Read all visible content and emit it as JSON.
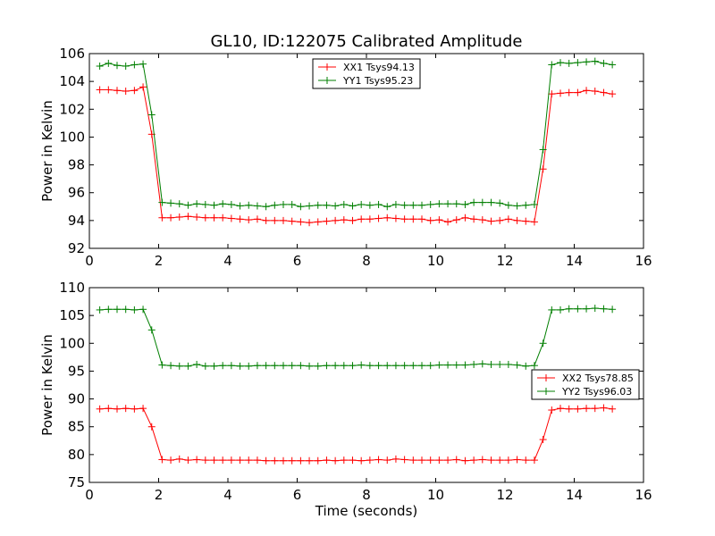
{
  "chart_data": [
    {
      "type": "line",
      "title": "GL10, ID:122075 Calibrated Amplitude",
      "xlabel": "",
      "ylabel": "Power in Kelvin",
      "xlim": [
        0,
        16
      ],
      "ylim": [
        92,
        106
      ],
      "xticks": [
        "0",
        "2",
        "4",
        "6",
        "8",
        "10",
        "12",
        "14",
        "16"
      ],
      "yticks": [
        "92",
        "94",
        "96",
        "98",
        "100",
        "102",
        "104",
        "106"
      ],
      "grid": false,
      "legend_position": "top-center",
      "x": [
        0.3,
        0.55,
        0.8,
        1.05,
        1.3,
        1.55,
        1.8,
        2.1,
        2.35,
        2.6,
        2.85,
        3.1,
        3.35,
        3.6,
        3.85,
        4.1,
        4.35,
        4.6,
        4.85,
        5.1,
        5.35,
        5.6,
        5.85,
        6.1,
        6.35,
        6.6,
        6.85,
        7.1,
        7.35,
        7.6,
        7.85,
        8.1,
        8.35,
        8.6,
        8.85,
        9.1,
        9.35,
        9.6,
        9.85,
        10.1,
        10.35,
        10.6,
        10.85,
        11.1,
        11.35,
        11.6,
        11.85,
        12.1,
        12.35,
        12.6,
        12.85,
        13.1,
        13.35,
        13.6,
        13.85,
        14.1,
        14.35,
        14.6,
        14.85,
        15.1
      ],
      "series": [
        {
          "name": "XX1 Tsys94.13",
          "color": "#ff0000",
          "values": [
            103.4,
            103.4,
            103.35,
            103.3,
            103.35,
            103.6,
            100.2,
            94.2,
            94.2,
            94.25,
            94.3,
            94.25,
            94.2,
            94.2,
            94.2,
            94.15,
            94.1,
            94.05,
            94.1,
            94.0,
            94.0,
            94.0,
            93.95,
            93.9,
            93.85,
            93.9,
            93.95,
            94.0,
            94.05,
            94.0,
            94.1,
            94.1,
            94.15,
            94.2,
            94.15,
            94.1,
            94.1,
            94.1,
            94.0,
            94.05,
            93.9,
            94.05,
            94.2,
            94.1,
            94.05,
            93.95,
            94.0,
            94.1,
            94.0,
            93.95,
            93.9,
            97.7,
            103.1,
            103.15,
            103.2,
            103.2,
            103.35,
            103.3,
            103.2,
            103.1
          ]
        },
        {
          "name": "YY1 Tsys95.23",
          "color": "#007f00",
          "values": [
            105.1,
            105.3,
            105.15,
            105.1,
            105.2,
            105.25,
            101.6,
            95.3,
            95.25,
            95.2,
            95.1,
            95.2,
            95.15,
            95.1,
            95.2,
            95.15,
            95.05,
            95.1,
            95.05,
            95.0,
            95.1,
            95.15,
            95.15,
            95.0,
            95.05,
            95.1,
            95.1,
            95.05,
            95.15,
            95.05,
            95.15,
            95.1,
            95.15,
            95.0,
            95.15,
            95.1,
            95.1,
            95.1,
            95.15,
            95.2,
            95.2,
            95.2,
            95.15,
            95.3,
            95.3,
            95.3,
            95.25,
            95.1,
            95.05,
            95.1,
            95.15,
            99.1,
            105.2,
            105.35,
            105.3,
            105.35,
            105.4,
            105.45,
            105.3,
            105.2
          ]
        }
      ]
    },
    {
      "type": "line",
      "title": "",
      "xlabel": "Time (seconds)",
      "ylabel": "Power in Kelvin",
      "xlim": [
        0,
        16
      ],
      "ylim": [
        75,
        110
      ],
      "xticks": [
        "0",
        "2",
        "4",
        "6",
        "8",
        "10",
        "12",
        "14",
        "16"
      ],
      "yticks": [
        "75",
        "80",
        "85",
        "90",
        "95",
        "100",
        "105",
        "110"
      ],
      "grid": false,
      "legend_position": "right",
      "x": [
        0.3,
        0.55,
        0.8,
        1.05,
        1.3,
        1.55,
        1.8,
        2.1,
        2.35,
        2.6,
        2.85,
        3.1,
        3.35,
        3.6,
        3.85,
        4.1,
        4.35,
        4.6,
        4.85,
        5.1,
        5.35,
        5.6,
        5.85,
        6.1,
        6.35,
        6.6,
        6.85,
        7.1,
        7.35,
        7.6,
        7.85,
        8.1,
        8.35,
        8.6,
        8.85,
        9.1,
        9.35,
        9.6,
        9.85,
        10.1,
        10.35,
        10.6,
        10.85,
        11.1,
        11.35,
        11.6,
        11.85,
        12.1,
        12.35,
        12.6,
        12.85,
        13.1,
        13.35,
        13.6,
        13.85,
        14.1,
        14.35,
        14.6,
        14.85,
        15.1
      ],
      "series": [
        {
          "name": "XX2 Tsys78.85",
          "color": "#ff0000",
          "values": [
            88.2,
            88.3,
            88.2,
            88.3,
            88.2,
            88.3,
            85.0,
            79.1,
            79.0,
            79.2,
            79.0,
            79.1,
            79.0,
            79.0,
            79.0,
            79.0,
            79.0,
            79.0,
            79.0,
            78.9,
            78.9,
            78.9,
            78.9,
            78.9,
            78.9,
            78.9,
            79.0,
            78.9,
            79.0,
            79.0,
            78.9,
            79.0,
            79.1,
            79.0,
            79.2,
            79.1,
            79.0,
            79.0,
            79.0,
            79.0,
            79.0,
            79.1,
            78.9,
            79.0,
            79.1,
            79.0,
            79.0,
            79.0,
            79.1,
            79.0,
            79.0,
            82.7,
            88.0,
            88.3,
            88.2,
            88.2,
            88.3,
            88.3,
            88.4,
            88.2
          ]
        },
        {
          "name": "YY2 Tsys96.03",
          "color": "#007f00",
          "values": [
            106.0,
            106.1,
            106.1,
            106.1,
            106.0,
            106.1,
            102.4,
            96.1,
            96.0,
            95.9,
            95.9,
            96.2,
            95.9,
            95.9,
            96.0,
            96.0,
            95.9,
            95.9,
            96.0,
            96.0,
            96.0,
            96.0,
            96.0,
            96.0,
            95.9,
            95.9,
            96.0,
            96.0,
            96.0,
            96.0,
            96.1,
            96.0,
            96.0,
            96.0,
            96.0,
            96.0,
            96.0,
            96.0,
            96.0,
            96.1,
            96.1,
            96.1,
            96.1,
            96.2,
            96.3,
            96.2,
            96.2,
            96.2,
            96.1,
            95.9,
            96.0,
            100.0,
            106.0,
            106.0,
            106.2,
            106.2,
            106.2,
            106.3,
            106.2,
            106.1
          ]
        }
      ]
    }
  ]
}
